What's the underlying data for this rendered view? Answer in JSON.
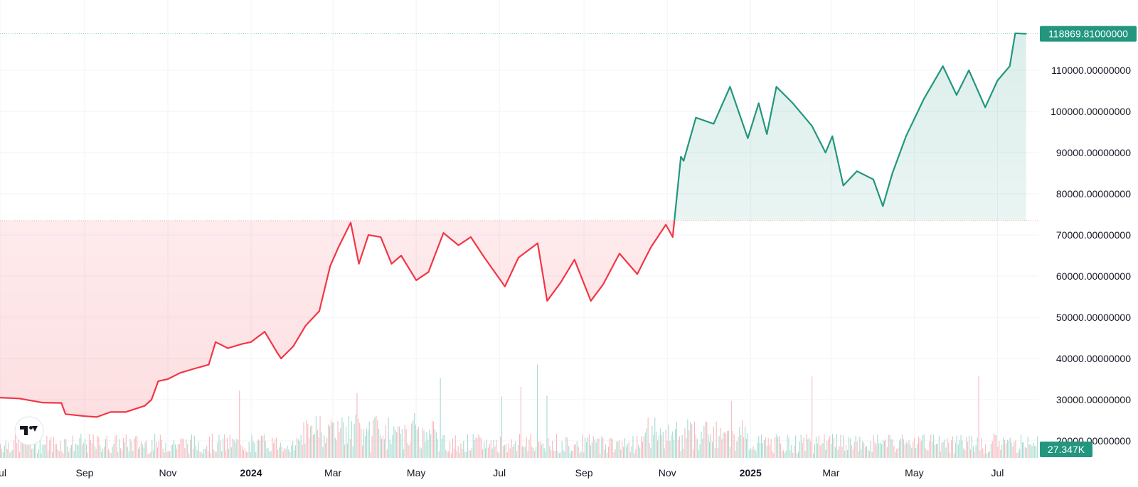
{
  "chart_data": {
    "type": "area",
    "title": "",
    "xlabel": "",
    "ylabel": "",
    "baseline": 73500,
    "ylim": [
      18000,
      122000
    ],
    "y_ticks": [
      20000,
      30000,
      40000,
      50000,
      60000,
      70000,
      80000,
      90000,
      100000,
      110000
    ],
    "y_tick_labels": [
      "20000.00000000",
      "30000.00000000",
      "40000.00000000",
      "50000.00000000",
      "60000.00000000",
      "70000.00000000",
      "80000.00000000",
      "90000.00000000",
      "100000.00000000",
      "110000.00000000"
    ],
    "x_ticks": [
      {
        "label": "Jul",
        "date": "2023-07-01",
        "major": false
      },
      {
        "label": "Sep",
        "date": "2023-09-01",
        "major": false
      },
      {
        "label": "Nov",
        "date": "2023-11-01",
        "major": false
      },
      {
        "label": "2024",
        "date": "2024-01-01",
        "major": true
      },
      {
        "label": "Mar",
        "date": "2024-03-01",
        "major": false
      },
      {
        "label": "May",
        "date": "2024-05-01",
        "major": false
      },
      {
        "label": "Jul",
        "date": "2024-07-01",
        "major": false
      },
      {
        "label": "Sep",
        "date": "2024-09-01",
        "major": false
      },
      {
        "label": "Nov",
        "date": "2024-11-01",
        "major": false
      },
      {
        "label": "2025",
        "date": "2025-01-01",
        "major": true
      },
      {
        "label": "Mar",
        "date": "2025-03-01",
        "major": false
      },
      {
        "label": "May",
        "date": "2025-05-01",
        "major": false
      },
      {
        "label": "Jul",
        "date": "2025-07-01",
        "major": false
      }
    ],
    "x_range": [
      "2023-07-01",
      "2025-07-31"
    ],
    "grid": true,
    "series": [
      {
        "dates": [
          "2023-07-01",
          "2023-07-15",
          "2023-08-01",
          "2023-08-15",
          "2023-08-18",
          "2023-09-01",
          "2023-09-10",
          "2023-09-20",
          "2023-10-01",
          "2023-10-15",
          "2023-10-20",
          "2023-10-25",
          "2023-11-01",
          "2023-11-10",
          "2023-11-20",
          "2023-12-01",
          "2023-12-06",
          "2023-12-15",
          "2023-12-25",
          "2024-01-01",
          "2024-01-11",
          "2024-01-20",
          "2024-01-23",
          "2024-02-01",
          "2024-02-10",
          "2024-02-20",
          "2024-02-28",
          "2024-03-05",
          "2024-03-14",
          "2024-03-20",
          "2024-03-27",
          "2024-04-05",
          "2024-04-13",
          "2024-04-20",
          "2024-05-01",
          "2024-05-10",
          "2024-05-21",
          "2024-06-01",
          "2024-06-10",
          "2024-06-20",
          "2024-07-05",
          "2024-07-15",
          "2024-07-29",
          "2024-08-05",
          "2024-08-15",
          "2024-08-25",
          "2024-09-06",
          "2024-09-15",
          "2024-09-27",
          "2024-10-10",
          "2024-10-20",
          "2024-10-31",
          "2024-11-05",
          "2024-11-11",
          "2024-11-13",
          "2024-11-22",
          "2024-12-05",
          "2024-12-17",
          "2024-12-30",
          "2025-01-07",
          "2025-01-13",
          "2025-01-20",
          "2025-02-01",
          "2025-02-15",
          "2025-02-25",
          "2025-03-02",
          "2025-03-10",
          "2025-03-20",
          "2025-04-01",
          "2025-04-08",
          "2025-04-15",
          "2025-04-25",
          "2025-05-08",
          "2025-05-22",
          "2025-06-01",
          "2025-06-10",
          "2025-06-22",
          "2025-07-01",
          "2025-07-10",
          "2025-07-14",
          "2025-07-22"
        ],
        "values": [
          30500,
          30300,
          29300,
          29200,
          26500,
          26000,
          25800,
          27000,
          27000,
          28500,
          30000,
          34500,
          35000,
          36500,
          37500,
          38500,
          44000,
          42500,
          43500,
          44000,
          46500,
          41500,
          40000,
          43000,
          48000,
          51500,
          62500,
          67000,
          73000,
          63000,
          70000,
          69500,
          63000,
          65000,
          59000,
          61000,
          70500,
          67500,
          69500,
          64500,
          57500,
          64500,
          68000,
          54000,
          58500,
          64000,
          54000,
          58000,
          65500,
          60500,
          67000,
          72500,
          69500,
          89000,
          88000,
          98500,
          97000,
          106000,
          93500,
          102000,
          94500,
          106000,
          102000,
          96500,
          90000,
          94000,
          82000,
          85500,
          83500,
          77000,
          85000,
          94000,
          103000,
          111000,
          104000,
          110000,
          101000,
          107500,
          111000,
          119000,
          118870
        ]
      }
    ],
    "last_price_label": "118869.81000000",
    "last_volume_label": "27.347K",
    "volume_ylim": [
      0,
      60000
    ],
    "colors": {
      "up": "#22967e",
      "down": "#f23645",
      "up_fill": "#22967e",
      "down_fill": "#f23645",
      "volume_up": "#a6dbcf",
      "volume_down": "#f7b8bd",
      "grid": "#f0f3fa",
      "text": "#131722",
      "baseline": "#b2b5be"
    }
  }
}
